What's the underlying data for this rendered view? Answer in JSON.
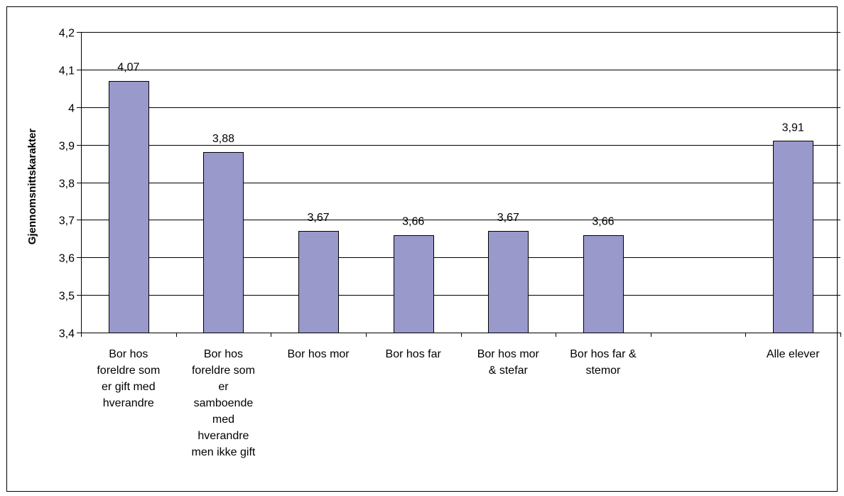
{
  "chart_data": {
    "type": "bar",
    "ylabel": "Gjennomsnittskarakter",
    "xlabel": "",
    "title": "",
    "ylim": [
      3.4,
      4.2
    ],
    "ytick_step": 0.1,
    "yticks": [
      "3,4",
      "3,5",
      "3,6",
      "3,7",
      "3,8",
      "3,9",
      "4",
      "4,1",
      "4,2"
    ],
    "grid": "horizontal",
    "categories": [
      [
        "Bor hos",
        "foreldre som",
        "er gift med",
        "hverandre"
      ],
      [
        "Bor hos",
        "foreldre som",
        "er",
        "samboende",
        "med",
        "hverandre",
        "men ikke gift"
      ],
      [
        "Bor hos mor"
      ],
      [
        "Bor hos far"
      ],
      [
        "Bor hos mor",
        "& stefar"
      ],
      [
        "Bor hos far &",
        "stemor"
      ],
      [
        ""
      ],
      [
        "Alle elever"
      ]
    ],
    "values": [
      4.07,
      3.88,
      3.67,
      3.66,
      3.67,
      3.66,
      null,
      3.91
    ],
    "value_labels": [
      "4,07",
      "3,88",
      "3,67",
      "3,66",
      "3,67",
      "3,66",
      "",
      "3,91"
    ],
    "bar_color": "#9999cc"
  }
}
